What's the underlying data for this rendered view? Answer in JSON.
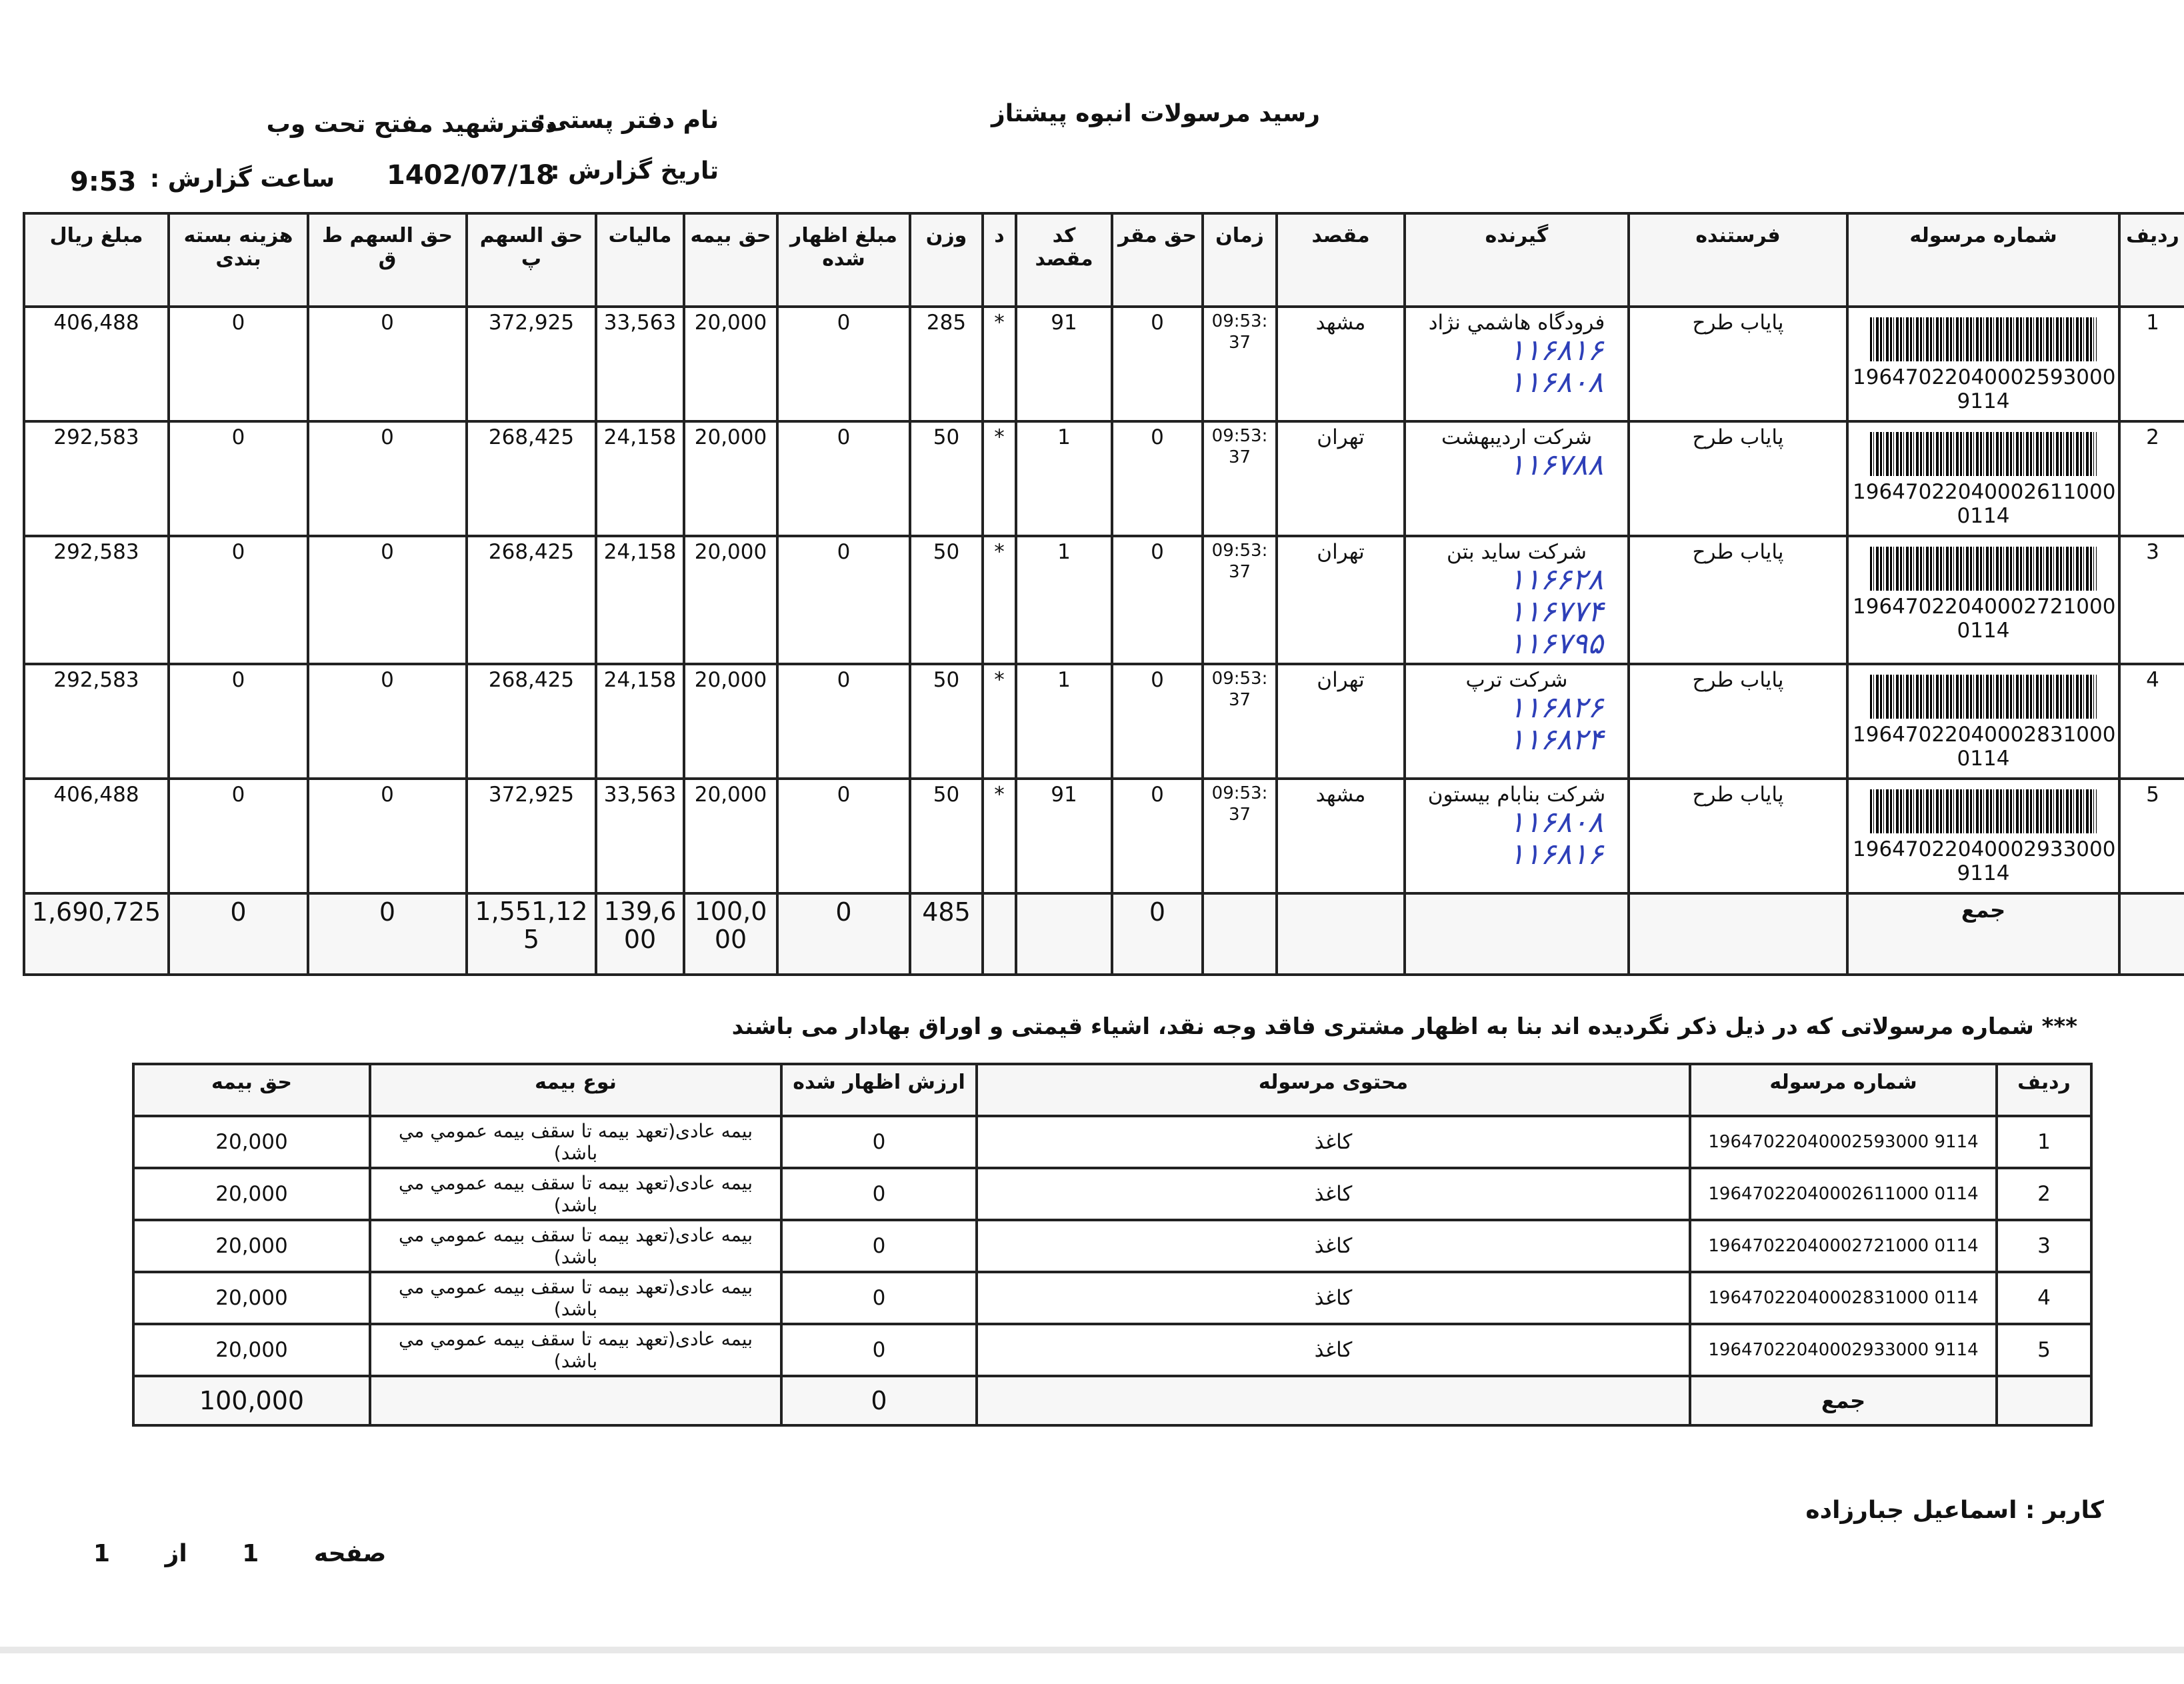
{
  "header": {
    "title": "رسید مرسولات انبوه  پیشتاز",
    "office_label": "نام دفتر پستی:",
    "office_value": "دفترشهید مفتح تحت وب",
    "date_label": "تاریخ گزارش :",
    "date_value": "1402/07/18",
    "time_label": "ساعت گزارش :",
    "time_value": "9:53"
  },
  "main_table": {
    "columns": [
      "ردیف",
      "شماره مرسوله",
      "فرستنده",
      "گیرنده",
      "مقصد",
      "زمان",
      "حق مقر",
      "کد مقصد",
      "د",
      "وزن",
      "مبلغ اظهار شده",
      "حق بیمه",
      "مالیات",
      "حق السهم پ",
      "حق السهم ط ق",
      "هزینه بسته بندی",
      "مبلغ ریال"
    ],
    "rows": [
      {
        "radif": "1",
        "tracking": "19647022040002593000",
        "tracking_suffix": "9114",
        "sender": "پایاب طرح",
        "recipient": "فرودگاه هاشمي نژاد",
        "handwritten": [
          "۱۱۶۸۱۶",
          "۱۱۶۸۰۸"
        ],
        "destination": "مشهد",
        "time": "09:53:37",
        "haq_maqar": "0",
        "dest_code": "91",
        "d": "*",
        "weight": "285",
        "declared": "0",
        "insurance": "20,000",
        "tax": "33,563",
        "share_p": "372,925",
        "share_tq": "0",
        "packing": "0",
        "amount": "406,488"
      },
      {
        "radif": "2",
        "tracking": "19647022040002611000",
        "tracking_suffix": "0114",
        "sender": "پایاب طرح",
        "recipient": "شرکت اردیبهشت",
        "handwritten": [
          "۱۱۶۷۸۸"
        ],
        "destination": "تهران",
        "time": "09:53:37",
        "haq_maqar": "0",
        "dest_code": "1",
        "d": "*",
        "weight": "50",
        "declared": "0",
        "insurance": "20,000",
        "tax": "24,158",
        "share_p": "268,425",
        "share_tq": "0",
        "packing": "0",
        "amount": "292,583"
      },
      {
        "radif": "3",
        "tracking": "19647022040002721000",
        "tracking_suffix": "0114",
        "sender": "پایاب طرح",
        "recipient": "شرکت ساید بتن",
        "handwritten": [
          "۱۱۶۶۲۸",
          "۱۱۶۷۷۴",
          "۱۱۶۷۹۵"
        ],
        "destination": "تهران",
        "time": "09:53:37",
        "haq_maqar": "0",
        "dest_code": "1",
        "d": "*",
        "weight": "50",
        "declared": "0",
        "insurance": "20,000",
        "tax": "24,158",
        "share_p": "268,425",
        "share_tq": "0",
        "packing": "0",
        "amount": "292,583"
      },
      {
        "radif": "4",
        "tracking": "19647022040002831000",
        "tracking_suffix": "0114",
        "sender": "پایاب طرح",
        "recipient": "شرکت ترپ",
        "handwritten": [
          "۱۱۶۸۲۶",
          "۱۱۶۸۲۴"
        ],
        "destination": "تهران",
        "time": "09:53:37",
        "haq_maqar": "0",
        "dest_code": "1",
        "d": "*",
        "weight": "50",
        "declared": "0",
        "insurance": "20,000",
        "tax": "24,158",
        "share_p": "268,425",
        "share_tq": "0",
        "packing": "0",
        "amount": "292,583"
      },
      {
        "radif": "5",
        "tracking": "19647022040002933000",
        "tracking_suffix": "9114",
        "sender": "پایاب طرح",
        "recipient": "شرکت بنابام بیستون",
        "handwritten": [
          "۱۱۶۸۰۸",
          "۱۱۶۸۱۶"
        ],
        "destination": "مشهد",
        "time": "09:53:37",
        "haq_maqar": "0",
        "dest_code": "91",
        "d": "*",
        "weight": "50",
        "declared": "0",
        "insurance": "20,000",
        "tax": "33,563",
        "share_p": "372,925",
        "share_tq": "0",
        "packing": "0",
        "amount": "406,488"
      }
    ],
    "total": {
      "label": "جمع",
      "haq_maqar": "0",
      "weight": "485",
      "declared": "0",
      "insurance": "100,000",
      "tax": "139,600",
      "share_p": "1,551,125",
      "share_tq": "0",
      "packing": "0",
      "amount": "1,690,725"
    }
  },
  "note": "*** شماره مرسولاتی که در ذیل ذکر نگردیده اند بنا به اظهار مشتری فاقد وجه نقد، اشیاء قیمتی و اوراق بهادار می باشند",
  "sub_table": {
    "columns": [
      "ردیف",
      "شماره مرسوله",
      "محتوی مرسوله",
      "ارزش اظهار شده",
      "نوع بیمه",
      "حق بیمه"
    ],
    "rows": [
      {
        "radif": "1",
        "tracking": "19647022040002593000 9114",
        "content": "کاغذ",
        "declared": "0",
        "ins_type": "بیمه عادی(تعهد بیمه تا سقف بیمه عمومي مي باشد)",
        "insurance": "20,000"
      },
      {
        "radif": "2",
        "tracking": "19647022040002611000 0114",
        "content": "کاغذ",
        "declared": "0",
        "ins_type": "بیمه عادی(تعهد بیمه تا سقف بیمه عمومي مي باشد)",
        "insurance": "20,000"
      },
      {
        "radif": "3",
        "tracking": "19647022040002721000 0114",
        "content": "کاغذ",
        "declared": "0",
        "ins_type": "بیمه عادی(تعهد بیمه تا سقف بیمه عمومي مي باشد)",
        "insurance": "20,000"
      },
      {
        "radif": "4",
        "tracking": "19647022040002831000 0114",
        "content": "کاغذ",
        "declared": "0",
        "ins_type": "بیمه عادی(تعهد بیمه تا سقف بیمه عمومي مي باشد)",
        "insurance": "20,000"
      },
      {
        "radif": "5",
        "tracking": "19647022040002933000 9114",
        "content": "کاغذ",
        "declared": "0",
        "ins_type": "بیمه عادی(تعهد بیمه تا سقف بیمه عمومي مي باشد)",
        "insurance": "20,000"
      }
    ],
    "total": {
      "label": "جمع",
      "declared": "0",
      "insurance": "100,000"
    }
  },
  "footer": {
    "user_label": "کاربر :",
    "user_name": "اسماعیل جبارزاده",
    "page_label": "صفحه",
    "page_current": "1",
    "page_of": "از",
    "page_total": "1"
  },
  "colors": {
    "ink": "#111111",
    "handwriting": "#2d3fb8"
  }
}
